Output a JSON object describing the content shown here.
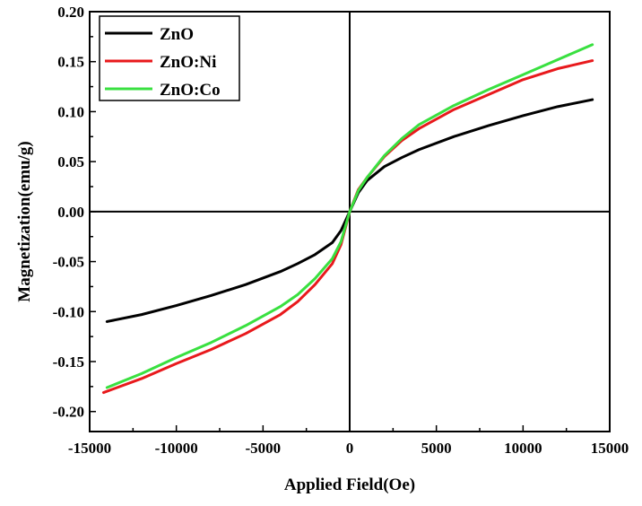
{
  "chart_data": {
    "type": "line",
    "title": "",
    "xlabel": "Applied Field(Oe)",
    "ylabel": "Magnetization(emu/g)",
    "xlim": [
      -15000,
      15000
    ],
    "ylim": [
      -0.22,
      0.2
    ],
    "x_ticks": [
      -15000,
      -10000,
      -5000,
      0,
      5000,
      10000,
      15000
    ],
    "y_ticks": [
      0.2,
      0.15,
      0.1,
      0.05,
      0.0,
      -0.05,
      -0.1,
      -0.15,
      -0.2
    ],
    "x_tick_labels": [
      "-15000",
      "-10000",
      "-5000",
      "0",
      "5000",
      "10000",
      "15000"
    ],
    "y_tick_labels": [
      "0.20",
      "0.15",
      "0.10",
      "0.05",
      "0.00",
      "-0.05",
      "-0.10",
      "-0.15",
      "-0.20"
    ],
    "zero_lines": true,
    "grid": false,
    "legend_position": "top-left",
    "series": [
      {
        "name": "ZnO",
        "color": "#000000",
        "x": [
          -14000,
          -12000,
          -10000,
          -8000,
          -6000,
          -4000,
          -3000,
          -2000,
          -1000,
          -500,
          0,
          500,
          1000,
          2000,
          3000,
          4000,
          6000,
          8000,
          10000,
          12000,
          14000
        ],
        "y": [
          -0.11,
          -0.103,
          -0.094,
          -0.084,
          -0.073,
          -0.06,
          -0.052,
          -0.043,
          -0.031,
          -0.019,
          0.0,
          0.019,
          0.031,
          0.045,
          0.054,
          0.062,
          0.075,
          0.086,
          0.096,
          0.105,
          0.112
        ]
      },
      {
        "name": "ZnO:Ni",
        "color": "#e8191c",
        "x": [
          -14200,
          -12000,
          -10000,
          -8000,
          -6000,
          -4000,
          -3000,
          -2000,
          -1000,
          -500,
          0,
          500,
          1000,
          2000,
          3000,
          4000,
          6000,
          8000,
          10000,
          12000,
          14000
        ],
        "y": [
          -0.181,
          -0.167,
          -0.152,
          -0.138,
          -0.122,
          -0.103,
          -0.09,
          -0.073,
          -0.052,
          -0.033,
          0.0,
          0.022,
          0.034,
          0.055,
          0.071,
          0.083,
          0.102,
          0.117,
          0.132,
          0.143,
          0.151
        ]
      },
      {
        "name": "ZnO:Co",
        "color": "#39e040",
        "x": [
          -14000,
          -12000,
          -10000,
          -8000,
          -6000,
          -4000,
          -3000,
          -2000,
          -1000,
          -500,
          0,
          500,
          1000,
          2000,
          3000,
          4000,
          6000,
          8000,
          10000,
          12000,
          14000
        ],
        "y": [
          -0.176,
          -0.162,
          -0.146,
          -0.131,
          -0.114,
          -0.095,
          -0.083,
          -0.067,
          -0.047,
          -0.03,
          0.0,
          0.021,
          0.034,
          0.056,
          0.073,
          0.087,
          0.106,
          0.122,
          0.137,
          0.152,
          0.167
        ]
      }
    ]
  }
}
